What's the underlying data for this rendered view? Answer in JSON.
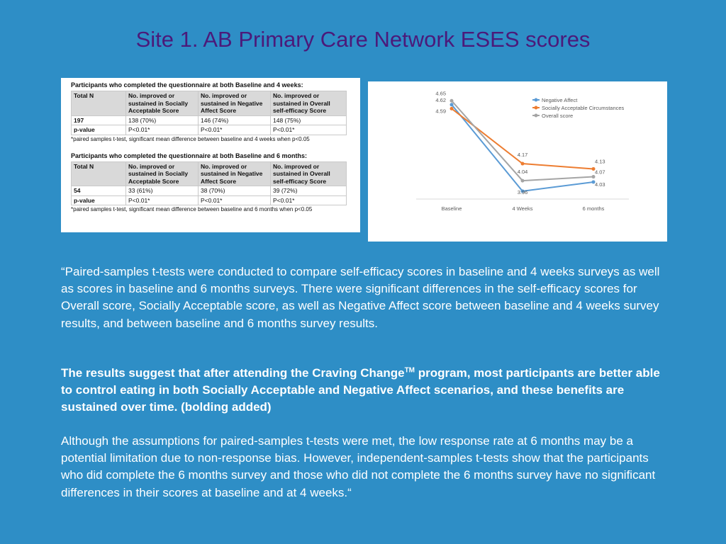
{
  "title": "Site 1.  AB Primary Care Network ESES scores",
  "tables": [
    {
      "caption": "Participants who completed the questionnaire at both Baseline and 4 weeks:",
      "headers": [
        "Total N",
        "No. improved or sustained in Socially Acceptable Score",
        "No. improved or sustained in Negative Affect Score",
        "No. improved or sustained in Overall self-efficacy Score"
      ],
      "row": [
        "197",
        "138 (70%)",
        "146 (74%)",
        "148 (75%)"
      ],
      "pvalue": [
        "p-value",
        "P<0.01*",
        "P<0.01*",
        "P<0.01*"
      ],
      "footnote": "*paired samples t-test, significant mean difference between baseline and 4 weeks when p<0.05"
    },
    {
      "caption": "Participants who completed the questionnaire at both Baseline and 6 months:",
      "headers": [
        "Total N",
        "No. improved or sustained in Socially Acceptable Score",
        "No. improved or sustained in Negative Affect Score",
        "No. improved or sustained in Overall self-efficacy Score"
      ],
      "row": [
        "54",
        "33 (61%)",
        "38 (70%)",
        "39 (72%)"
      ],
      "pvalue": [
        "p-value",
        "P<0.01*",
        "P<0.01*",
        "P<0.01*"
      ],
      "footnote": "*paired samples t-test, significant mean difference between baseline and 6 months when p<0.05"
    }
  ],
  "chart_data": {
    "type": "line",
    "x": [
      "Baseline",
      "4 Weeks",
      "6 months"
    ],
    "ylim": [
      3.9,
      4.7
    ],
    "legend_position": "top-right",
    "grid": false,
    "series": [
      {
        "name": "Negative Affect",
        "values": [
          4.62,
          3.96,
          4.03
        ],
        "labels": [
          "4.62",
          "3.96",
          "4.03"
        ],
        "color": "#5b9bd5"
      },
      {
        "name": "Socially Acceptable Circumstances",
        "values": [
          4.59,
          4.17,
          4.13
        ],
        "labels": [
          "4.59",
          "4.17",
          "4.13"
        ],
        "color": "#ed7d31"
      },
      {
        "name": "Overall score",
        "values": [
          4.65,
          4.04,
          4.07
        ],
        "labels": [
          "4.65",
          "4.04",
          "4.07"
        ],
        "color": "#a5a5a5"
      }
    ]
  },
  "paragraphs": {
    "p1": "“Paired-samples t-tests were conducted to compare self-efficacy scores in baseline and 4 weeks surveys as well as scores in baseline and 6 months surveys. There were significant differences in the self-efficacy scores for Overall score, Socially Acceptable score, as well as Negative Affect score between baseline and 4 weeks survey results, and between baseline and 6 months survey results.",
    "p2_a": "The results suggest that after attending the Craving Change",
    "p2_tm": "TM",
    "p2_b": " program, most participants are better able to control eating in both Socially Acceptable and Negative Affect scenarios, and these benefits are sustained over time. (bolding added)",
    "p3": "Although the assumptions for paired-samples t-tests were met, the low response rate at 6 months may be a potential limitation due to non-response bias. However, independent-samples t-tests show that the participants who did complete the 6 months survey and those who did not complete the 6 months survey have no significant differences in their scores at baseline and at 4 weeks.“"
  }
}
